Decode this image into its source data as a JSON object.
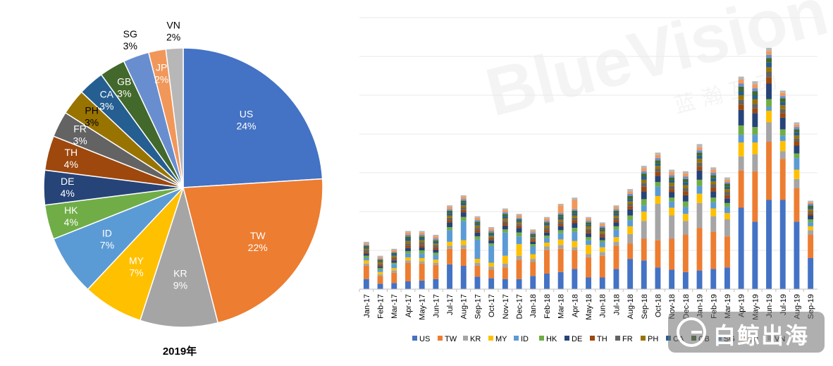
{
  "colors": {
    "US": "#4472c4",
    "TW": "#ed7d31",
    "KR": "#a5a5a5",
    "MY": "#ffc000",
    "ID": "#5b9bd5",
    "HK": "#70ad47",
    "DE": "#264478",
    "TH": "#9e480e",
    "FR": "#636363",
    "PH": "#997300",
    "CA": "#255e91",
    "GB": "#43682b",
    "SG": "#698ed0",
    "JP": "#f1975a",
    "VN": "#b7b7b7"
  },
  "chart_data": [
    {
      "type": "pie",
      "title": "2019年",
      "labels": [
        "US",
        "TW",
        "KR",
        "MY",
        "ID",
        "HK",
        "DE",
        "TH",
        "FR",
        "PH",
        "CA",
        "GB",
        "SG",
        "JP",
        "VN"
      ],
      "values": [
        24,
        22,
        9,
        7,
        7,
        4,
        4,
        4,
        3,
        3,
        3,
        3,
        3,
        2,
        2
      ],
      "value_labels": [
        "24%",
        "22%",
        "9%",
        "7%",
        "7%",
        "4%",
        "4%",
        "4%",
        "3%",
        "3%",
        "3%",
        "3%",
        "3%",
        "2%",
        "2%"
      ]
    },
    {
      "type": "bar",
      "stacked": true,
      "grid": true,
      "legend_position": "bottom",
      "categories": [
        "Jan-17",
        "Feb-17",
        "Mar-17",
        "Apr-17",
        "May-17",
        "Jun-17",
        "Jul-17",
        "Aug-17",
        "Sep-17",
        "Oct-17",
        "Nov-17",
        "Dec-17",
        "Jan-18",
        "Feb-18",
        "Mar-18",
        "Apr-18",
        "May-18",
        "Jun-18",
        "Jul-18",
        "Aug-18",
        "Sep-18",
        "Oct-18",
        "Nov-18",
        "Dec-18",
        "Jan-19",
        "Feb-19",
        "Mar-19",
        "Apr-19",
        "May-19",
        "Jun-19",
        "Jul-19",
        "Aug-19",
        "Sep-19"
      ],
      "ylim": [
        0,
        350
      ],
      "series": [
        {
          "name": "US",
          "values": [
            13,
            7,
            8,
            10,
            11,
            13,
            32,
            30,
            16,
            14,
            13,
            13,
            17,
            20,
            22,
            26,
            15,
            15,
            26,
            39,
            37,
            28,
            25,
            22,
            24,
            26,
            28,
            105,
            87,
            115,
            115,
            87,
            40
          ]
        },
        {
          "name": "TW",
          "values": [
            17,
            10,
            13,
            24,
            22,
            18,
            20,
            22,
            14,
            11,
            15,
            25,
            18,
            30,
            30,
            24,
            26,
            28,
            30,
            20,
            28,
            35,
            40,
            48,
            55,
            48,
            40,
            48,
            65,
            75,
            53,
            43,
            30
          ]
        },
        {
          "name": "KR",
          "values": [
            3,
            2,
            3,
            3,
            3,
            3,
            4,
            5,
            4,
            4,
            5,
            5,
            4,
            5,
            5,
            4,
            4,
            5,
            5,
            12,
            23,
            47,
            30,
            18,
            32,
            20,
            22,
            18,
            22,
            25,
            10,
            12,
            6
          ]
        },
        {
          "name": "MY",
          "values": [
            4,
            3,
            3,
            4,
            4,
            4,
            5,
            6,
            5,
            5,
            10,
            15,
            6,
            5,
            7,
            8,
            12,
            6,
            6,
            10,
            12,
            10,
            10,
            9,
            12,
            10,
            8,
            18,
            15,
            15,
            13,
            12,
            5
          ]
        },
        {
          "name": "ID",
          "values": [
            3,
            3,
            5,
            5,
            6,
            6,
            15,
            25,
            25,
            22,
            30,
            10,
            10,
            6,
            8,
            12,
            6,
            6,
            10,
            8,
            8,
            12,
            8,
            9,
            10,
            8,
            8,
            10,
            10,
            5,
            7,
            15,
            5
          ]
        },
        {
          "name": "HK",
          "values": [
            3,
            2,
            2,
            3,
            4,
            3,
            4,
            5,
            4,
            3,
            4,
            5,
            3,
            3,
            4,
            5,
            4,
            3,
            4,
            6,
            8,
            6,
            5,
            7,
            8,
            6,
            5,
            12,
            10,
            10,
            8,
            6,
            4
          ]
        },
        {
          "name": "DE",
          "values": [
            3,
            2,
            3,
            4,
            4,
            4,
            6,
            6,
            5,
            4,
            5,
            6,
            3,
            4,
            5,
            6,
            5,
            4,
            5,
            8,
            10,
            8,
            7,
            8,
            12,
            8,
            6,
            20,
            18,
            20,
            15,
            10,
            5
          ]
        },
        {
          "name": "TH",
          "values": [
            2,
            2,
            2,
            3,
            3,
            3,
            3,
            3,
            3,
            2,
            3,
            3,
            2,
            3,
            3,
            4,
            3,
            3,
            3,
            4,
            6,
            5,
            4,
            5,
            5,
            5,
            4,
            7,
            6,
            8,
            6,
            5,
            3
          ]
        },
        {
          "name": "FR",
          "values": [
            2,
            2,
            2,
            3,
            3,
            3,
            3,
            3,
            3,
            2,
            3,
            2,
            2,
            3,
            3,
            3,
            3,
            2,
            3,
            3,
            5,
            4,
            4,
            4,
            5,
            4,
            4,
            6,
            6,
            7,
            5,
            4,
            2
          ]
        },
        {
          "name": "PH",
          "values": [
            2,
            2,
            2,
            3,
            3,
            2,
            3,
            3,
            3,
            2,
            3,
            2,
            2,
            3,
            3,
            3,
            3,
            3,
            3,
            3,
            4,
            4,
            4,
            4,
            5,
            4,
            4,
            6,
            6,
            6,
            5,
            4,
            3
          ]
        },
        {
          "name": "CA",
          "values": [
            2,
            1,
            2,
            3,
            2,
            2,
            3,
            3,
            2,
            2,
            3,
            2,
            2,
            2,
            3,
            3,
            2,
            2,
            3,
            3,
            4,
            3,
            3,
            4,
            4,
            4,
            3,
            5,
            5,
            6,
            4,
            4,
            2
          ]
        },
        {
          "name": "GB",
          "values": [
            2,
            2,
            2,
            3,
            3,
            2,
            3,
            3,
            3,
            2,
            3,
            2,
            2,
            2,
            3,
            3,
            3,
            2,
            3,
            4,
            4,
            4,
            4,
            4,
            4,
            4,
            4,
            6,
            5,
            6,
            5,
            4,
            3
          ]
        },
        {
          "name": "SG",
          "values": [
            1,
            1,
            1,
            2,
            2,
            2,
            2,
            2,
            2,
            2,
            2,
            2,
            2,
            2,
            2,
            2,
            2,
            2,
            2,
            3,
            3,
            3,
            3,
            3,
            3,
            3,
            2,
            4,
            4,
            4,
            3,
            3,
            2
          ]
        },
        {
          "name": "JP",
          "values": [
            2,
            2,
            2,
            3,
            3,
            3,
            3,
            3,
            3,
            3,
            3,
            3,
            2,
            3,
            10,
            12,
            3,
            3,
            3,
            3,
            4,
            4,
            4,
            4,
            4,
            4,
            3,
            5,
            5,
            5,
            4,
            3,
            2
          ]
        },
        {
          "name": "VN",
          "values": [
            2,
            2,
            2,
            2,
            2,
            2,
            2,
            2,
            2,
            2,
            2,
            2,
            2,
            2,
            2,
            3,
            2,
            2,
            2,
            3,
            3,
            3,
            3,
            3,
            4,
            3,
            3,
            4,
            4,
            4,
            3,
            3,
            2
          ]
        }
      ]
    }
  ],
  "watermark": {
    "logo_text": "BlueVision",
    "logo_cn": "蓝 瀚 互 动",
    "corner_text": "白鲸出海"
  }
}
